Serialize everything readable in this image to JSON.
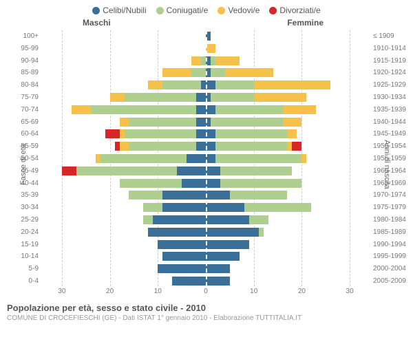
{
  "chart": {
    "type": "population-pyramid",
    "legend": [
      {
        "label": "Celibi/Nubili",
        "color": "#3a6f9a"
      },
      {
        "label": "Coniugati/e",
        "color": "#aecf8f"
      },
      {
        "label": "Vedovi/e",
        "color": "#f6c14b"
      },
      {
        "label": "Divorziati/e",
        "color": "#d62728"
      }
    ],
    "header_left": "Maschi",
    "header_right": "Femmine",
    "y_left_title": "Fasce di età",
    "y_right_title": "Anni di nascita",
    "age_groups": [
      "100+",
      "95-99",
      "90-94",
      "85-89",
      "80-84",
      "75-79",
      "70-74",
      "65-69",
      "60-64",
      "55-59",
      "50-54",
      "45-49",
      "40-44",
      "35-39",
      "30-34",
      "25-29",
      "20-24",
      "15-19",
      "10-14",
      "5-9",
      "0-4"
    ],
    "birth_years": [
      "≤ 1909",
      "1910-1914",
      "1915-1919",
      "1920-1924",
      "1925-1929",
      "1930-1934",
      "1935-1939",
      "1940-1944",
      "1945-1949",
      "1950-1954",
      "1955-1959",
      "1960-1964",
      "1965-1969",
      "1970-1974",
      "1975-1979",
      "1980-1984",
      "1985-1989",
      "1990-1994",
      "1995-1999",
      "2000-2004",
      "2005-2009"
    ],
    "x_max": 34,
    "x_ticks_left": [
      30,
      20,
      10,
      0
    ],
    "x_ticks_right": [
      0,
      10,
      20,
      30
    ],
    "grid_step": 10,
    "grid_color": "#cccccc",
    "background": "#ffffff",
    "males": [
      {
        "cel": 0,
        "con": 0,
        "ved": 0,
        "div": 0
      },
      {
        "cel": 0,
        "con": 0,
        "ved": 0,
        "div": 0
      },
      {
        "cel": 0,
        "con": 1,
        "ved": 2,
        "div": 0
      },
      {
        "cel": 0,
        "con": 3,
        "ved": 6,
        "div": 0
      },
      {
        "cel": 1,
        "con": 8,
        "ved": 3,
        "div": 0
      },
      {
        "cel": 2,
        "con": 15,
        "ved": 3,
        "div": 0
      },
      {
        "cel": 2,
        "con": 22,
        "ved": 4,
        "div": 0
      },
      {
        "cel": 2,
        "con": 14,
        "ved": 2,
        "div": 0
      },
      {
        "cel": 2,
        "con": 15,
        "ved": 1,
        "div": 3
      },
      {
        "cel": 2,
        "con": 14,
        "ved": 2,
        "div": 1
      },
      {
        "cel": 4,
        "con": 18,
        "ved": 1,
        "div": 0
      },
      {
        "cel": 6,
        "con": 21,
        "ved": 0,
        "div": 3
      },
      {
        "cel": 5,
        "con": 13,
        "ved": 0,
        "div": 0
      },
      {
        "cel": 9,
        "con": 7,
        "ved": 0,
        "div": 0
      },
      {
        "cel": 9,
        "con": 4,
        "ved": 0,
        "div": 0
      },
      {
        "cel": 11,
        "con": 2,
        "ved": 0,
        "div": 0
      },
      {
        "cel": 12,
        "con": 0,
        "ved": 0,
        "div": 0
      },
      {
        "cel": 10,
        "con": 0,
        "ved": 0,
        "div": 0
      },
      {
        "cel": 9,
        "con": 0,
        "ved": 0,
        "div": 0
      },
      {
        "cel": 10,
        "con": 0,
        "ved": 0,
        "div": 0
      },
      {
        "cel": 7,
        "con": 0,
        "ved": 0,
        "div": 0
      }
    ],
    "females": [
      {
        "cel": 1,
        "con": 0,
        "ved": 0,
        "div": 0
      },
      {
        "cel": 0,
        "con": 0,
        "ved": 2,
        "div": 0
      },
      {
        "cel": 1,
        "con": 1,
        "ved": 5,
        "div": 0
      },
      {
        "cel": 1,
        "con": 3,
        "ved": 10,
        "div": 0
      },
      {
        "cel": 2,
        "con": 8,
        "ved": 16,
        "div": 0
      },
      {
        "cel": 1,
        "con": 9,
        "ved": 11,
        "div": 0
      },
      {
        "cel": 2,
        "con": 14,
        "ved": 7,
        "div": 0
      },
      {
        "cel": 1,
        "con": 15,
        "ved": 4,
        "div": 0
      },
      {
        "cel": 2,
        "con": 15,
        "ved": 2,
        "div": 0
      },
      {
        "cel": 2,
        "con": 15,
        "ved": 1,
        "div": 2
      },
      {
        "cel": 2,
        "con": 18,
        "ved": 1,
        "div": 0
      },
      {
        "cel": 3,
        "con": 15,
        "ved": 0,
        "div": 0
      },
      {
        "cel": 3,
        "con": 17,
        "ved": 0,
        "div": 0
      },
      {
        "cel": 5,
        "con": 12,
        "ved": 0,
        "div": 0
      },
      {
        "cel": 8,
        "con": 14,
        "ved": 0,
        "div": 0
      },
      {
        "cel": 9,
        "con": 4,
        "ved": 0,
        "div": 0
      },
      {
        "cel": 11,
        "con": 1,
        "ved": 0,
        "div": 0
      },
      {
        "cel": 9,
        "con": 0,
        "ved": 0,
        "div": 0
      },
      {
        "cel": 7,
        "con": 0,
        "ved": 0,
        "div": 0
      },
      {
        "cel": 5,
        "con": 0,
        "ved": 0,
        "div": 0
      },
      {
        "cel": 5,
        "con": 0,
        "ved": 0,
        "div": 0
      }
    ]
  },
  "footer": {
    "title": "Popolazione per età, sesso e stato civile - 2010",
    "subtitle": "COMUNE DI CROCEFIESCHI (GE) - Dati ISTAT 1° gennaio 2010 - Elaborazione TUTTITALIA.IT"
  }
}
